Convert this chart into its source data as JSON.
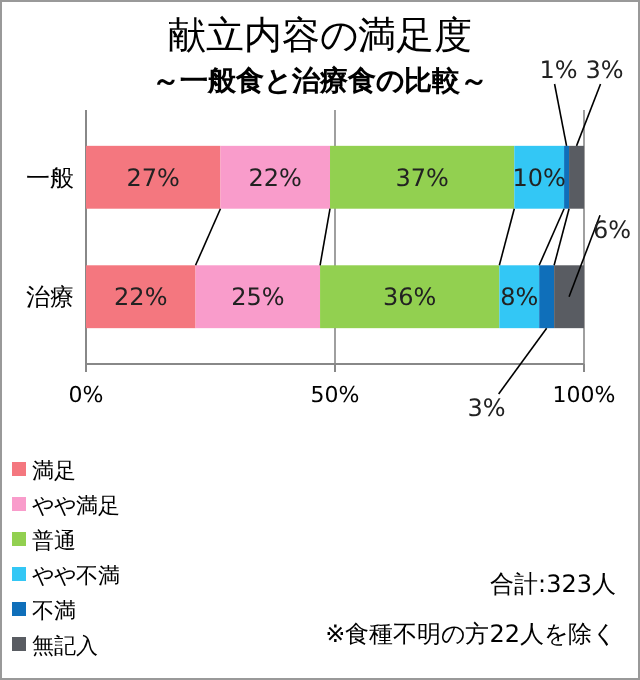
{
  "chart_data": {
    "type": "bar",
    "orientation": "horizontal",
    "stacked": true,
    "title": "献立内容の満足度",
    "subtitle": "～一般食と治療食の比較～",
    "categories": [
      "一般",
      "治療"
    ],
    "series": [
      {
        "name": "満足",
        "color": "#f4777f",
        "values": [
          27,
          22
        ],
        "value_labels": [
          "27%",
          "22%"
        ]
      },
      {
        "name": "やや満足",
        "color": "#f99ccb",
        "values": [
          22,
          25
        ],
        "value_labels": [
          "22%",
          "25%"
        ]
      },
      {
        "name": "普通",
        "color": "#92d050",
        "values": [
          37,
          36
        ],
        "value_labels": [
          "37%",
          "36%"
        ]
      },
      {
        "name": "やや不満",
        "color": "#33c7f5",
        "values": [
          10,
          8
        ],
        "value_labels": [
          "10%",
          "8%"
        ]
      },
      {
        "name": "不満",
        "color": "#0f6fba",
        "values": [
          1,
          3
        ],
        "value_labels": [
          "1%",
          "3%"
        ]
      },
      {
        "name": "無記入",
        "color": "#595c62",
        "values": [
          3,
          6
        ],
        "value_labels": [
          "3%",
          "6%"
        ]
      }
    ],
    "xlim": [
      0,
      100
    ],
    "xticks": [
      {
        "value": 0,
        "label": "0%"
      },
      {
        "value": 50,
        "label": "50%"
      },
      {
        "value": 100,
        "label": "100%"
      }
    ],
    "grid": "x",
    "legend": "bottom",
    "annotations": [
      "合計:323人",
      "※食種不明の方22人を除く"
    ]
  }
}
